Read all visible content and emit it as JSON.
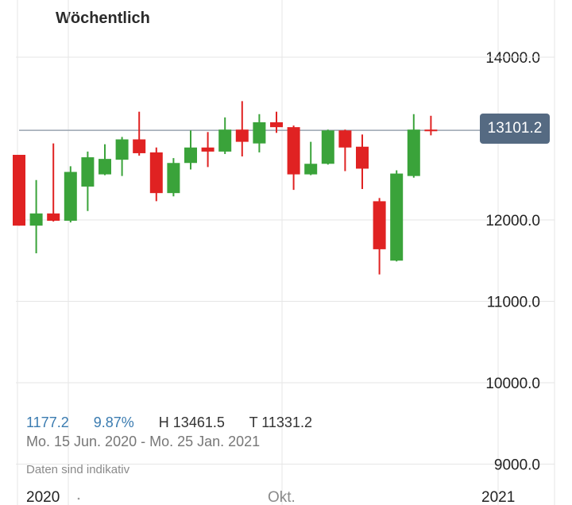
{
  "chart_data": {
    "type": "candlestick",
    "title": "Wöchentlich",
    "y_axis": {
      "ticks": [
        "14000.0",
        "12000.0",
        "11000.0",
        "10000.0",
        "9000.0"
      ],
      "range": [
        8800,
        14400
      ]
    },
    "x_axis": {
      "ticks": [
        {
          "label": "2020",
          "index": 2
        },
        {
          "label": "Okt.",
          "index": 15
        },
        {
          "label": "2021",
          "index": 28
        }
      ]
    },
    "current_price": 13101.2,
    "current_price_label": "13101.2",
    "stats": {
      "change": "1177.2",
      "change_pct": "9.87%",
      "high": "H 13461.5",
      "low": "T 11331.2",
      "period": "Mo. 15 Jun. 2020 - Mo. 25 Jan. 2021"
    },
    "note": "Daten sind indikativ",
    "candles": [
      {
        "o": 12800,
        "h": 12800,
        "l": 11930,
        "c": 11930
      },
      {
        "o": 11930,
        "h": 12490,
        "l": 11590,
        "c": 12080
      },
      {
        "o": 12080,
        "h": 12940,
        "l": 11980,
        "c": 11990
      },
      {
        "o": 11990,
        "h": 12660,
        "l": 11970,
        "c": 12590
      },
      {
        "o": 12410,
        "h": 12840,
        "l": 12110,
        "c": 12770
      },
      {
        "o": 12560,
        "h": 12930,
        "l": 12550,
        "c": 12750
      },
      {
        "o": 12740,
        "h": 13020,
        "l": 12540,
        "c": 12990
      },
      {
        "o": 12990,
        "h": 13330,
        "l": 12790,
        "c": 12820
      },
      {
        "o": 12830,
        "h": 12890,
        "l": 12230,
        "c": 12330
      },
      {
        "o": 12330,
        "h": 12760,
        "l": 12290,
        "c": 12700
      },
      {
        "o": 12700,
        "h": 13100,
        "l": 12620,
        "c": 12890
      },
      {
        "o": 12890,
        "h": 13080,
        "l": 12650,
        "c": 12840
      },
      {
        "o": 12840,
        "h": 13260,
        "l": 12810,
        "c": 13110
      },
      {
        "o": 13110,
        "h": 13460,
        "l": 12780,
        "c": 12960
      },
      {
        "o": 12940,
        "h": 13300,
        "l": 12830,
        "c": 13200
      },
      {
        "o": 13200,
        "h": 13330,
        "l": 13070,
        "c": 13140
      },
      {
        "o": 13140,
        "h": 13160,
        "l": 12370,
        "c": 12560
      },
      {
        "o": 12560,
        "h": 12960,
        "l": 12550,
        "c": 12690
      },
      {
        "o": 12690,
        "h": 13110,
        "l": 12680,
        "c": 13100
      },
      {
        "o": 13100,
        "h": 13110,
        "l": 12600,
        "c": 12890
      },
      {
        "o": 12900,
        "h": 13050,
        "l": 12380,
        "c": 12630
      },
      {
        "o": 12230,
        "h": 12270,
        "l": 11330,
        "c": 11640
      },
      {
        "o": 11500,
        "h": 12610,
        "l": 11490,
        "c": 12570
      },
      {
        "o": 12540,
        "h": 13300,
        "l": 12520,
        "c": 13110
      },
      {
        "o": 13110,
        "h": 13280,
        "l": 13040,
        "c": 13090
      }
    ],
    "colors": {
      "up": "#3aa33a",
      "down": "#e02222",
      "grid": "#e6e6e6",
      "price_line": "#9aa5b1",
      "badge": "#556a82"
    }
  }
}
